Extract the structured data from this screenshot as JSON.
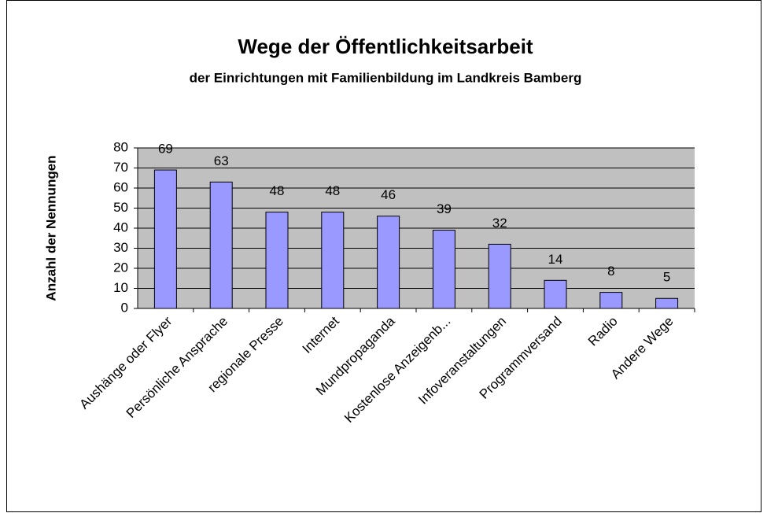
{
  "chart_data": {
    "type": "bar",
    "title": "Wege der Öffentlichkeitsarbeit",
    "subtitle": "der Einrichtungen mit Familienbildung im Landkreis Bamberg",
    "y_label": "Anzahl der Nennungen",
    "categories": [
      "Aushänge oder Flyer",
      "Persönliche Ansprache",
      "regionale Presse",
      "Internet",
      "Mundpropaganda",
      "Kostenlose Anzeigenb...",
      "Infoveranstaltungen",
      "Programmversand",
      "Radio",
      "Andere Wege"
    ],
    "values": [
      69,
      63,
      48,
      48,
      46,
      39,
      32,
      14,
      8,
      5
    ],
    "color": "#9999ff",
    "ylim": [
      0,
      80
    ],
    "yticks": [
      0,
      10,
      20,
      30,
      40,
      50,
      60,
      70,
      80
    ],
    "grid": true
  }
}
